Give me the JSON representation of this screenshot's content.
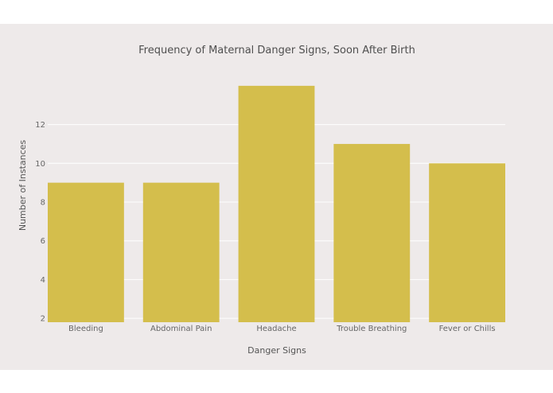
{
  "chart_data": {
    "type": "bar",
    "title": "Frequency of Maternal Danger Signs, Soon After Birth",
    "xlabel": "Danger Signs",
    "ylabel": "Number of Instances",
    "categories": [
      "Bleeding",
      "Abdominal Pain",
      "Headache",
      "Trouble Breathing",
      "Fever or Chills"
    ],
    "values": [
      9,
      9,
      14,
      11,
      10
    ],
    "ylim": [
      1.8,
      14.2
    ],
    "yticks": [
      2,
      4,
      6,
      8,
      10,
      12
    ],
    "grid": true,
    "colors": {
      "bar": "#d4be4c",
      "background": "#eeeaea",
      "grid": "#ffffff"
    }
  }
}
